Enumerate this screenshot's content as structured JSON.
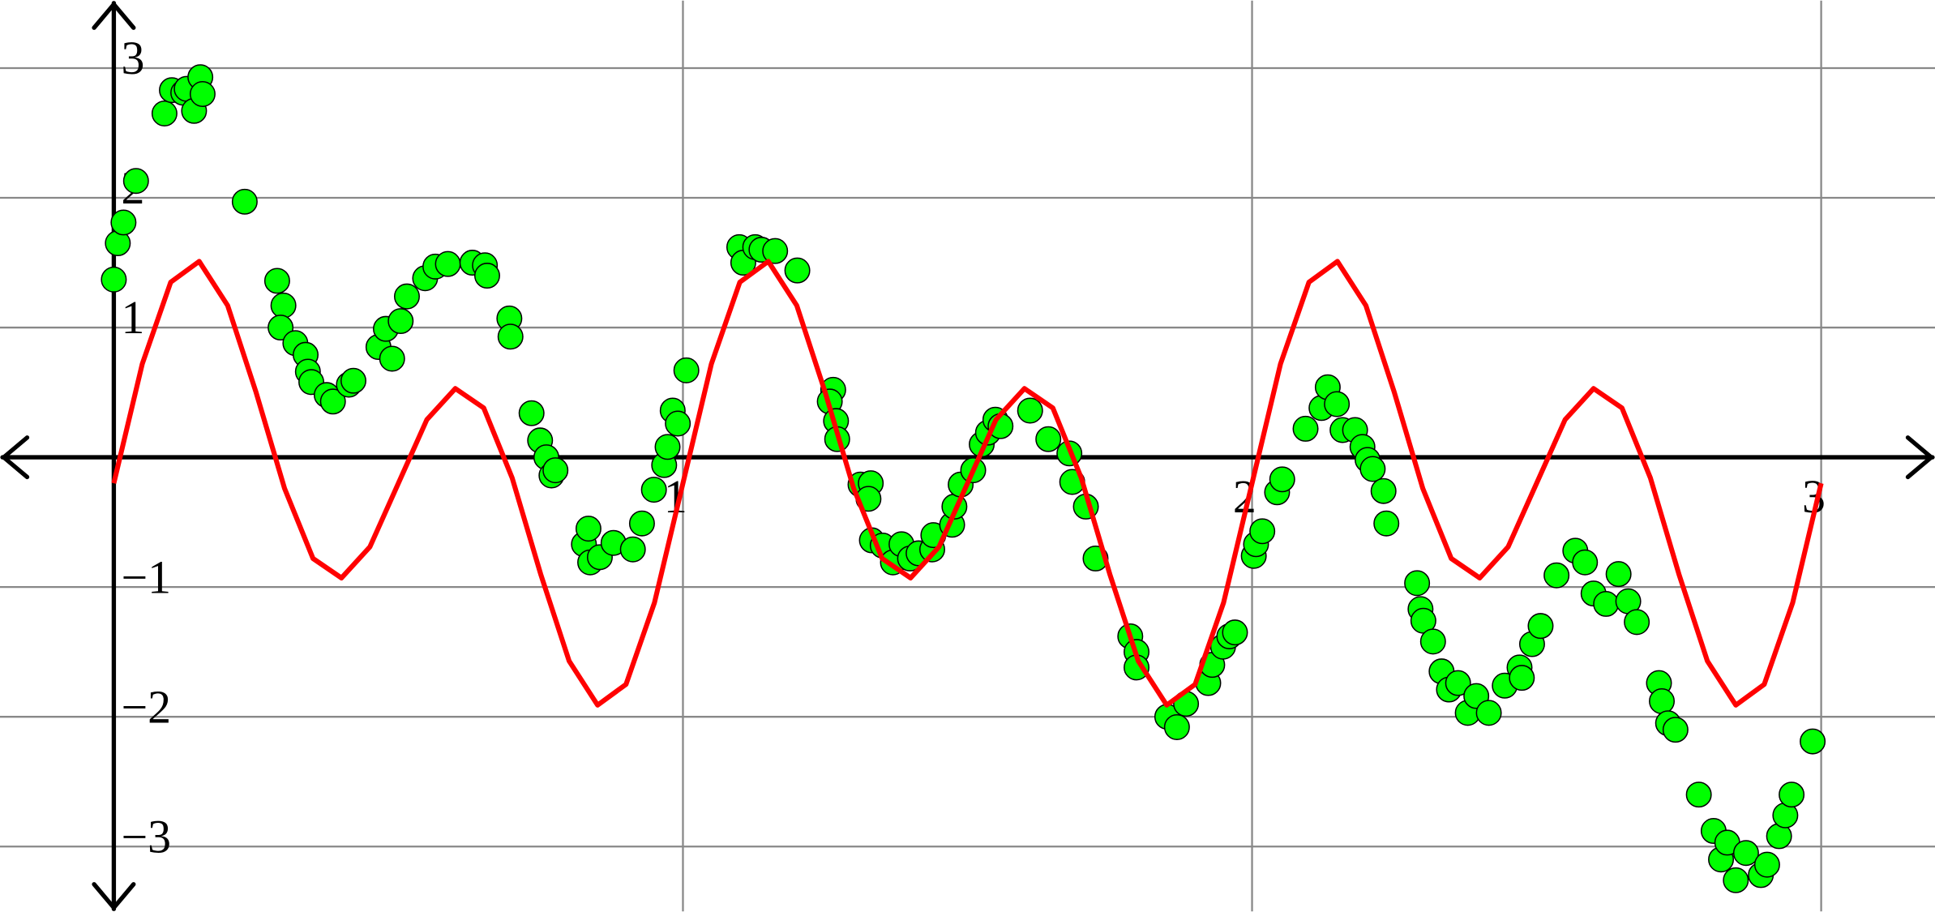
{
  "chart_data": {
    "type": "scatter",
    "xlim": [
      -0.2,
      3.2
    ],
    "ylim": [
      -3.5,
      3.52
    ],
    "xticks": [
      1,
      2,
      3
    ],
    "yticks": [
      {
        "value": -3,
        "label": "−3"
      },
      {
        "value": -2,
        "label": "−2"
      },
      {
        "value": -1,
        "label": "−1"
      },
      1,
      2,
      3
    ],
    "grid": true,
    "series": [
      {
        "type": "scatter",
        "color": "#00ff00",
        "x": [
          0.0,
          0.007,
          0.017,
          0.039,
          0.089,
          0.102,
          0.122,
          0.128,
          0.141,
          0.152,
          0.156,
          0.23,
          0.287,
          0.298,
          0.293,
          0.319,
          0.337,
          0.341,
          0.347,
          0.374,
          0.385,
          0.413,
          0.421,
          0.465,
          0.478,
          0.489,
          0.504,
          0.515,
          0.547,
          0.565,
          0.587,
          0.63,
          0.652,
          0.656,
          0.695,
          0.697,
          0.734,
          0.749,
          0.76,
          0.769,
          0.776,
          0.826,
          0.834,
          0.837,
          0.854,
          0.878,
          0.912,
          0.928,
          0.949,
          0.967,
          0.973,
          0.982,
          0.991,
          1.006,
          1.099,
          1.106,
          1.127,
          1.138,
          1.162,
          1.201,
          1.264,
          1.258,
          1.269,
          1.271,
          1.312,
          1.33,
          1.326,
          1.332,
          1.351,
          1.369,
          1.384,
          1.399,
          1.414,
          1.438,
          1.44,
          1.473,
          1.477,
          1.488,
          1.51,
          1.525,
          1.536,
          1.549,
          1.558,
          1.61,
          1.642,
          1.679,
          1.684,
          1.708,
          1.725,
          1.786,
          1.797,
          1.797,
          1.851,
          1.868,
          1.884,
          1.923,
          1.93,
          1.949,
          1.96,
          1.97,
          2.003,
          2.007,
          2.018,
          2.044,
          2.053,
          2.094,
          2.122,
          2.133,
          2.149,
          2.159,
          2.181,
          2.194,
          2.203,
          2.212,
          2.231,
          2.236,
          2.29,
          2.296,
          2.301,
          2.318,
          2.333,
          2.346,
          2.362,
          2.379,
          2.394,
          2.416,
          2.444,
          2.47,
          2.474,
          2.492,
          2.507,
          2.535,
          2.568,
          2.585,
          2.6,
          2.622,
          2.644,
          2.661,
          2.676,
          2.715,
          2.72,
          2.731,
          2.744,
          2.785,
          2.811,
          2.824,
          2.835,
          2.85,
          2.868,
          2.894,
          2.905,
          2.926,
          2.937,
          2.948,
          2.985
        ],
        "values": [
          1.37,
          1.65,
          1.81,
          2.13,
          2.65,
          2.83,
          2.81,
          2.84,
          2.67,
          2.93,
          2.8,
          1.97,
          1.36,
          1.17,
          1.0,
          0.88,
          0.79,
          0.66,
          0.58,
          0.48,
          0.43,
          0.56,
          0.59,
          0.85,
          0.99,
          0.76,
          1.05,
          1.24,
          1.38,
          1.47,
          1.49,
          1.5,
          1.48,
          1.4,
          1.07,
          0.93,
          0.34,
          0.13,
          0.0,
          -0.14,
          -0.1,
          -0.67,
          -0.55,
          -0.81,
          -0.77,
          -0.66,
          -0.71,
          -0.51,
          -0.25,
          -0.06,
          0.08,
          0.36,
          0.26,
          0.67,
          1.62,
          1.5,
          1.62,
          1.6,
          1.59,
          1.44,
          0.52,
          0.43,
          0.28,
          0.14,
          -0.21,
          -0.2,
          -0.32,
          -0.64,
          -0.68,
          -0.81,
          -0.67,
          -0.78,
          -0.74,
          -0.71,
          -0.6,
          -0.52,
          -0.38,
          -0.21,
          -0.1,
          0.1,
          0.19,
          0.29,
          0.24,
          0.36,
          0.14,
          0.03,
          -0.19,
          -0.38,
          -0.78,
          -1.38,
          -1.5,
          -1.62,
          -2.0,
          -2.08,
          -1.9,
          -1.74,
          -1.6,
          -1.46,
          -1.38,
          -1.35,
          -0.76,
          -0.67,
          -0.57,
          -0.27,
          -0.17,
          0.22,
          0.38,
          0.54,
          0.41,
          0.21,
          0.21,
          0.08,
          -0.02,
          -0.09,
          -0.26,
          -0.51,
          -0.97,
          -1.17,
          -1.26,
          -1.42,
          -1.65,
          -1.79,
          -1.74,
          -1.97,
          -1.84,
          -1.97,
          -1.76,
          -1.62,
          -1.7,
          -1.44,
          -1.3,
          -0.91,
          -0.72,
          -0.81,
          -1.05,
          -1.13,
          -0.9,
          -1.11,
          -1.27,
          -1.74,
          -1.88,
          -2.05,
          -2.1,
          -2.6,
          -2.88,
          -3.1,
          -2.97,
          -3.26,
          -3.05,
          -3.22,
          -3.14,
          -2.92,
          -2.76,
          -2.6,
          -2.19
        ]
      },
      {
        "type": "line",
        "color": "#ff0000",
        "x": [
          0,
          0.05,
          0.1,
          0.15,
          0.2,
          0.25,
          0.3,
          0.35,
          0.4,
          0.45,
          0.5,
          0.55,
          0.6,
          0.65,
          0.7,
          0.75,
          0.8,
          0.85,
          0.9,
          0.95,
          1,
          1.05,
          1.1,
          1.15,
          1.2,
          1.25,
          1.3,
          1.35,
          1.4,
          1.45,
          1.5,
          1.55,
          1.6,
          1.65,
          1.7,
          1.75,
          1.8,
          1.85,
          1.9,
          1.95,
          2,
          2.05,
          2.1,
          2.15,
          2.2,
          2.25,
          2.3,
          2.35,
          2.4,
          2.45,
          2.5,
          2.55,
          2.6,
          2.65,
          2.7,
          2.75,
          2.8,
          2.85,
          2.9,
          2.95,
          3
        ],
        "values": [
          -0.2,
          0.72,
          1.35,
          1.51,
          1.17,
          0.5,
          -0.24,
          -0.78,
          -0.93,
          -0.69,
          -0.2,
          0.29,
          0.53,
          0.38,
          -0.16,
          -0.9,
          -1.57,
          -1.91,
          -1.75,
          -1.12,
          -0.2,
          0.72,
          1.35,
          1.51,
          1.17,
          0.5,
          -0.24,
          -0.78,
          -0.93,
          -0.69,
          -0.2,
          0.29,
          0.53,
          0.38,
          -0.16,
          -0.9,
          -1.57,
          -1.91,
          -1.75,
          -1.12,
          -0.2,
          0.72,
          1.35,
          1.51,
          1.17,
          0.5,
          -0.24,
          -0.78,
          -0.93,
          -0.69,
          -0.2,
          0.29,
          0.53,
          0.38,
          -0.16,
          -0.9,
          -1.57,
          -1.91,
          -1.75,
          -1.12,
          -0.2
        ]
      }
    ]
  }
}
